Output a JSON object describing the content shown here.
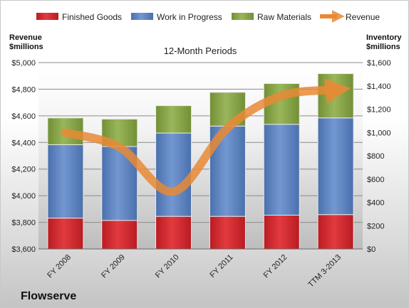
{
  "chart_data": {
    "type": "bar",
    "subtype": "stacked bar with line overlay",
    "title": "12-Month Periods",
    "company": "Flowserve",
    "categories": [
      "FY 2008",
      "FY 2009",
      "FY 2010",
      "FY 2011",
      "FY 2012",
      "TTM 3-2013"
    ],
    "left_axis": {
      "title_lines": [
        "Revenue",
        "$millions"
      ],
      "ylim": [
        3600,
        5000
      ],
      "ticks": [
        "$3,600",
        "$3,800",
        "$4,000",
        "$4,200",
        "$4,400",
        "$4,600",
        "$4,800",
        "$5,000"
      ]
    },
    "right_axis": {
      "title_lines": [
        "Inventory",
        "$millions"
      ],
      "ylim": [
        0,
        1600
      ],
      "ticks": [
        "$0",
        "$200",
        "$400",
        "$600",
        "$800",
        "$1,000",
        "$1,200",
        "$1,400",
        "$1,600"
      ]
    },
    "grid": true,
    "legend_position": "top",
    "series": [
      {
        "name": "Finished Goods",
        "axis": "right",
        "kind": "bar",
        "color": "#d42a2f",
        "values": [
          265,
          245,
          280,
          280,
          290,
          295
        ]
      },
      {
        "name": "Work in Progress",
        "axis": "right",
        "kind": "bar",
        "color": "#5b84c4",
        "values": [
          630,
          635,
          715,
          775,
          780,
          830
        ]
      },
      {
        "name": "Raw Materials",
        "axis": "right",
        "kind": "bar",
        "color": "#89a84a",
        "values": [
          230,
          235,
          235,
          290,
          350,
          380
        ]
      },
      {
        "name": "Revenue",
        "axis": "left",
        "kind": "line",
        "color": "#e88a35",
        "values": [
          4473,
          4365,
          4032,
          4510,
          4751,
          4795
        ]
      }
    ]
  }
}
